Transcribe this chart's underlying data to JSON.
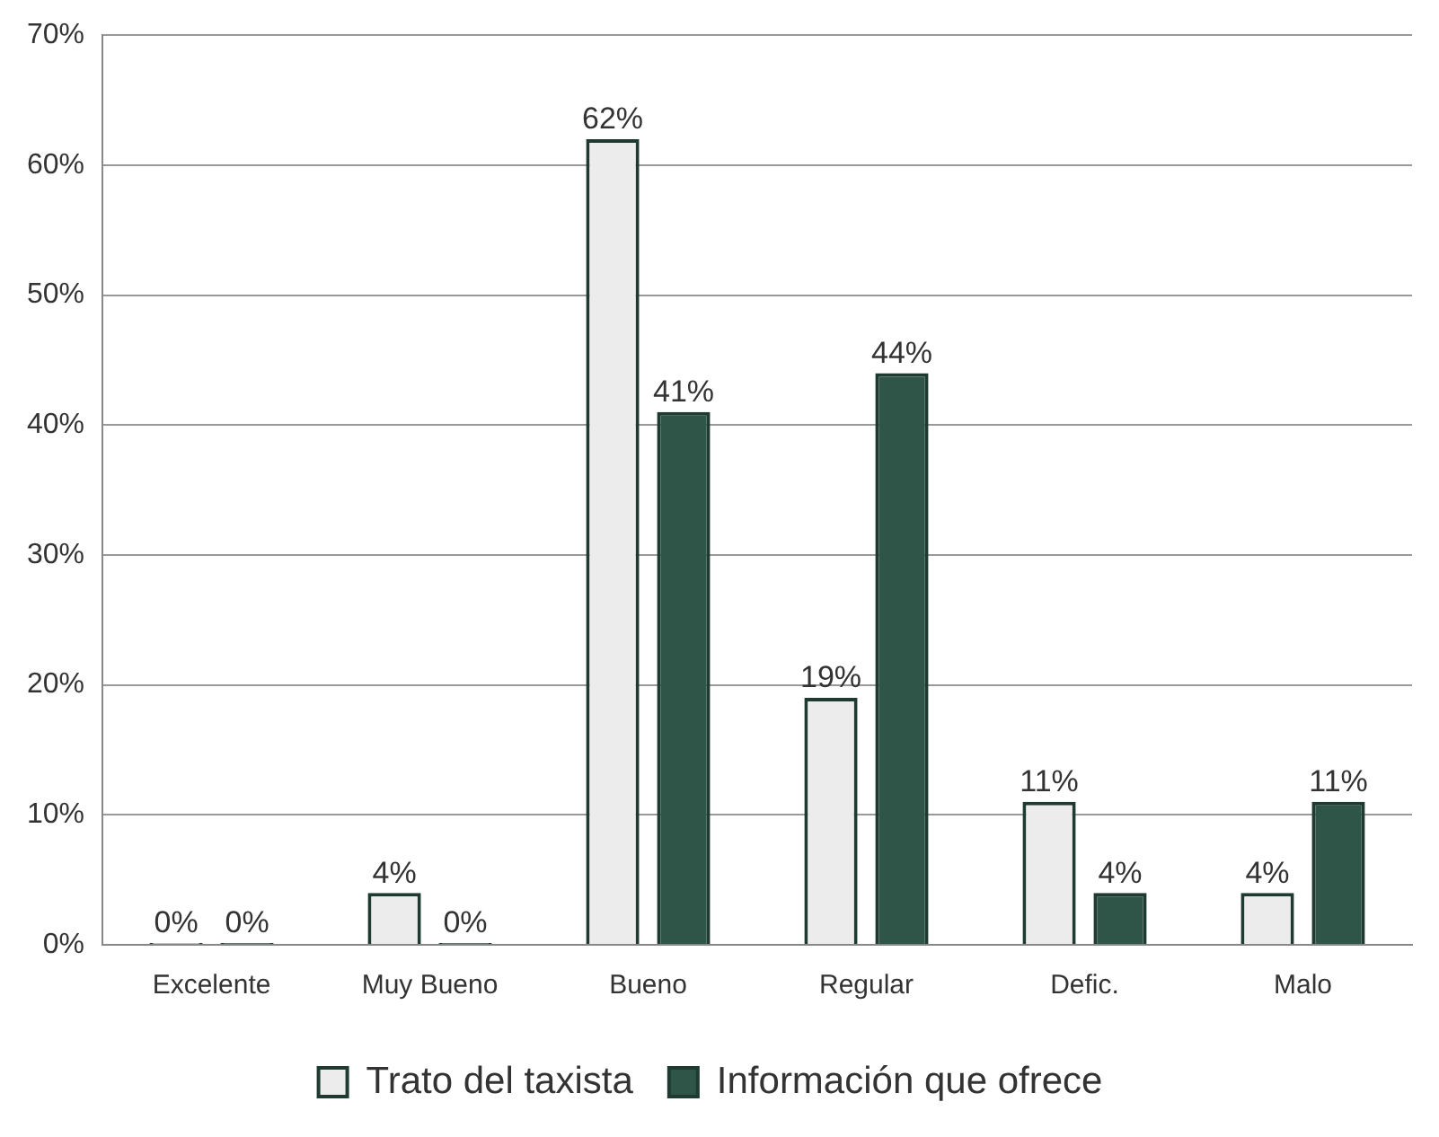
{
  "chart_data": {
    "type": "bar",
    "categories": [
      "Excelente",
      "Muy Bueno",
      "Bueno",
      "Regular",
      "Defic.",
      "Malo"
    ],
    "series": [
      {
        "name": "Trato del taxista",
        "color": "#ececec",
        "values": [
          0,
          4,
          62,
          19,
          11,
          4
        ],
        "value_labels": [
          "0%",
          "4%",
          "62%",
          "19%",
          "11%",
          "4%"
        ]
      },
      {
        "name": "Información que ofrece",
        "color": "#2e5547",
        "values": [
          0,
          0,
          41,
          44,
          4,
          11
        ],
        "value_labels": [
          "0%",
          "0%",
          "41%",
          "44%",
          "4%",
          "11%"
        ]
      }
    ],
    "ylim": [
      0,
      70
    ],
    "yticks": [
      {
        "value": 0,
        "label": "0%"
      },
      {
        "value": 10,
        "label": "10%"
      },
      {
        "value": 20,
        "label": "20%"
      },
      {
        "value": 30,
        "label": "30%"
      },
      {
        "value": 40,
        "label": "40%"
      },
      {
        "value": 50,
        "label": "50%"
      },
      {
        "value": 60,
        "label": "60%"
      },
      {
        "value": 70,
        "label": "70%"
      }
    ],
    "grid": "y",
    "legend": "bottom"
  }
}
